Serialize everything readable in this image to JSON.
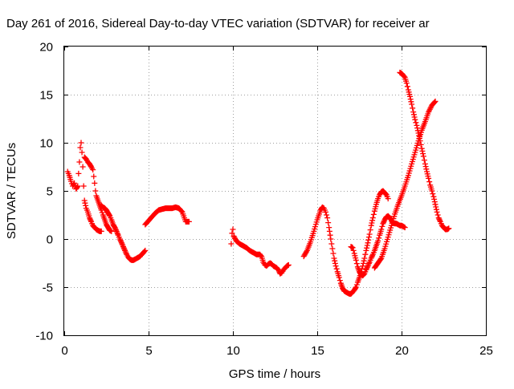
{
  "chart_data": {
    "type": "scatter",
    "title": "Day 261 of 2016, Sidereal Day-to-day VTEC variation (SDTVAR) for receiver ar",
    "xlabel": "GPS time / hours",
    "ylabel": "SDTVAR / TECUs",
    "xlim": [
      0,
      25
    ],
    "ylim": [
      -10,
      20
    ],
    "xticks": [
      0,
      5,
      10,
      15,
      20,
      25
    ],
    "yticks": [
      -10,
      -5,
      0,
      5,
      10,
      15,
      20
    ],
    "grid": true,
    "marker": "plus",
    "color": "#ff0000",
    "series": [
      {
        "values": [
          [
            0.2,
            7.0
          ],
          [
            0.3,
            6.6
          ],
          [
            0.4,
            6.0
          ],
          [
            0.5,
            5.5
          ],
          [
            0.6,
            5.8
          ],
          [
            0.7,
            5.2
          ],
          [
            0.8,
            5.5
          ],
          [
            0.85,
            6.8
          ],
          [
            0.9,
            8.0
          ],
          [
            0.95,
            9.5
          ],
          [
            1.0,
            10.0
          ],
          [
            1.05,
            9.0
          ],
          [
            1.1,
            7.5
          ],
          [
            1.15,
            5.5
          ],
          [
            1.2,
            4.0
          ],
          [
            1.3,
            3.2
          ],
          [
            1.4,
            2.8
          ],
          [
            1.5,
            2.2
          ],
          [
            1.6,
            1.8
          ],
          [
            1.7,
            1.4
          ],
          [
            1.8,
            1.2
          ],
          [
            1.9,
            1.0
          ],
          [
            2.0,
            0.9
          ],
          [
            2.1,
            0.8
          ],
          [
            2.2,
            0.8
          ]
        ]
      },
      {
        "values": [
          [
            1.2,
            8.5
          ],
          [
            1.3,
            8.3
          ],
          [
            1.4,
            8.0
          ],
          [
            1.5,
            7.8
          ],
          [
            1.6,
            7.5
          ],
          [
            1.7,
            7.2
          ],
          [
            1.75,
            6.5
          ],
          [
            1.8,
            5.8
          ],
          [
            1.85,
            5.0
          ],
          [
            1.9,
            4.5
          ],
          [
            2.0,
            4.0
          ],
          [
            2.1,
            3.5
          ],
          [
            2.2,
            3.0
          ],
          [
            2.3,
            2.5
          ],
          [
            2.4,
            2.0
          ],
          [
            2.5,
            1.5
          ],
          [
            2.6,
            1.2
          ],
          [
            2.7,
            0.9
          ],
          [
            2.8,
            0.8
          ]
        ]
      },
      {
        "values": [
          [
            2.2,
            3.5
          ],
          [
            2.3,
            3.3
          ],
          [
            2.4,
            3.2
          ],
          [
            2.5,
            3.0
          ],
          [
            2.6,
            2.7
          ],
          [
            2.7,
            2.4
          ],
          [
            2.8,
            2.0
          ],
          [
            2.9,
            1.5
          ],
          [
            3.0,
            1.2
          ],
          [
            3.1,
            0.8
          ],
          [
            3.2,
            0.4
          ],
          [
            3.3,
            0.0
          ],
          [
            3.4,
            -0.4
          ],
          [
            3.5,
            -0.8
          ],
          [
            3.6,
            -1.2
          ],
          [
            3.7,
            -1.6
          ],
          [
            3.8,
            -1.9
          ],
          [
            3.9,
            -2.1
          ],
          [
            4.0,
            -2.2
          ],
          [
            4.1,
            -2.2
          ],
          [
            4.2,
            -2.1
          ],
          [
            4.3,
            -2.0
          ],
          [
            4.4,
            -1.9
          ],
          [
            4.5,
            -1.8
          ],
          [
            4.6,
            -1.6
          ],
          [
            4.7,
            -1.4
          ],
          [
            4.8,
            -1.2
          ]
        ]
      },
      {
        "values": [
          [
            4.8,
            1.5
          ],
          [
            5.0,
            1.9
          ],
          [
            5.2,
            2.3
          ],
          [
            5.4,
            2.7
          ],
          [
            5.6,
            3.0
          ],
          [
            5.8,
            3.1
          ],
          [
            6.0,
            3.2
          ],
          [
            6.2,
            3.2
          ],
          [
            6.4,
            3.2
          ],
          [
            6.6,
            3.3
          ],
          [
            6.8,
            3.2
          ],
          [
            7.0,
            2.8
          ],
          [
            7.2,
            1.8
          ],
          [
            7.4,
            1.8
          ]
        ]
      },
      {
        "values": [
          [
            9.9,
            -0.5
          ],
          [
            9.95,
            0.6
          ],
          [
            10.0,
            1.0
          ],
          [
            10.05,
            0.3
          ],
          [
            10.2,
            -0.2
          ],
          [
            10.4,
            -0.5
          ],
          [
            10.6,
            -0.7
          ],
          [
            10.8,
            -0.9
          ],
          [
            11.0,
            -1.2
          ],
          [
            11.2,
            -1.4
          ],
          [
            11.4,
            -1.6
          ],
          [
            11.6,
            -1.6
          ],
          [
            11.7,
            -1.8
          ],
          [
            11.8,
            -2.4
          ],
          [
            11.9,
            -2.7
          ],
          [
            12.0,
            -2.8
          ],
          [
            12.1,
            -2.6
          ],
          [
            12.2,
            -2.5
          ],
          [
            12.3,
            -2.6
          ],
          [
            12.4,
            -2.8
          ],
          [
            12.5,
            -2.9
          ],
          [
            12.6,
            -3.0
          ],
          [
            12.7,
            -3.2
          ],
          [
            12.8,
            -3.6
          ],
          [
            12.9,
            -3.5
          ],
          [
            13.0,
            -3.2
          ],
          [
            13.1,
            -3.0
          ],
          [
            13.2,
            -2.8
          ],
          [
            13.3,
            -2.7
          ]
        ]
      },
      {
        "values": [
          [
            14.2,
            -1.8
          ],
          [
            14.4,
            -1.2
          ],
          [
            14.6,
            -0.3
          ],
          [
            14.8,
            0.8
          ],
          [
            15.0,
            2.0
          ],
          [
            15.2,
            3.0
          ],
          [
            15.3,
            3.3
          ],
          [
            15.4,
            3.2
          ],
          [
            15.5,
            2.8
          ],
          [
            15.6,
            2.2
          ],
          [
            15.7,
            1.2
          ],
          [
            15.8,
            0.0
          ],
          [
            15.9,
            -1.0
          ],
          [
            16.0,
            -2.0
          ],
          [
            16.1,
            -2.8
          ],
          [
            16.2,
            -3.4
          ],
          [
            16.3,
            -4.0
          ],
          [
            16.4,
            -4.6
          ],
          [
            16.5,
            -5.1
          ],
          [
            16.6,
            -5.4
          ],
          [
            16.7,
            -5.5
          ],
          [
            16.8,
            -5.6
          ],
          [
            16.9,
            -5.7
          ],
          [
            17.0,
            -5.7
          ],
          [
            17.1,
            -5.5
          ],
          [
            17.2,
            -5.3
          ],
          [
            17.3,
            -5.0
          ],
          [
            17.4,
            -4.5
          ],
          [
            17.5,
            -4.0
          ],
          [
            17.6,
            -3.4
          ],
          [
            17.7,
            -2.8
          ],
          [
            17.8,
            -2.0
          ],
          [
            17.9,
            -1.2
          ],
          [
            18.0,
            -0.4
          ],
          [
            18.1,
            0.5
          ],
          [
            18.2,
            1.4
          ],
          [
            18.3,
            2.2
          ],
          [
            18.4,
            2.9
          ],
          [
            18.5,
            3.6
          ],
          [
            18.6,
            4.2
          ],
          [
            18.7,
            4.6
          ],
          [
            18.8,
            4.9
          ],
          [
            18.9,
            5.0
          ],
          [
            19.0,
            4.8
          ],
          [
            19.1,
            4.6
          ],
          [
            19.2,
            4.2
          ]
        ]
      },
      {
        "values": [
          [
            17.0,
            -0.8
          ],
          [
            17.1,
            -0.9
          ],
          [
            17.2,
            -1.5
          ],
          [
            17.3,
            -2.2
          ],
          [
            17.4,
            -2.9
          ],
          [
            17.5,
            -3.4
          ],
          [
            17.6,
            -3.7
          ],
          [
            17.7,
            -3.8
          ],
          [
            17.8,
            -3.6
          ],
          [
            17.9,
            -3.2
          ],
          [
            18.0,
            -2.8
          ],
          [
            18.1,
            -2.4
          ],
          [
            18.2,
            -2.0
          ],
          [
            18.3,
            -1.6
          ],
          [
            18.4,
            -1.2
          ],
          [
            18.5,
            -0.7
          ],
          [
            18.6,
            -0.2
          ],
          [
            18.7,
            0.4
          ],
          [
            18.8,
            1.0
          ],
          [
            18.9,
            1.6
          ],
          [
            19.0,
            2.0
          ],
          [
            19.1,
            2.3
          ],
          [
            19.2,
            2.4
          ],
          [
            19.3,
            2.2
          ],
          [
            19.4,
            1.9
          ],
          [
            19.5,
            1.7
          ],
          [
            19.6,
            1.6
          ],
          [
            19.7,
            1.6
          ],
          [
            19.8,
            1.5
          ],
          [
            19.9,
            1.4
          ],
          [
            20.0,
            1.4
          ],
          [
            20.1,
            1.3
          ],
          [
            20.2,
            1.2
          ]
        ]
      },
      {
        "values": [
          [
            18.4,
            -3.0
          ],
          [
            18.6,
            -2.5
          ],
          [
            18.8,
            -2.0
          ],
          [
            19.0,
            -1.0
          ],
          [
            19.2,
            0.2
          ],
          [
            19.4,
            1.4
          ],
          [
            19.6,
            2.6
          ],
          [
            19.8,
            3.6
          ],
          [
            20.0,
            4.5
          ],
          [
            20.2,
            5.5
          ],
          [
            20.4,
            6.6
          ],
          [
            20.6,
            7.8
          ],
          [
            20.8,
            9.0
          ],
          [
            21.0,
            10.2
          ],
          [
            21.2,
            11.3
          ],
          [
            21.4,
            12.2
          ],
          [
            21.6,
            13.2
          ],
          [
            21.8,
            13.9
          ],
          [
            22.0,
            14.3
          ]
        ]
      },
      {
        "values": [
          [
            19.9,
            17.3
          ],
          [
            20.0,
            17.2
          ],
          [
            20.1,
            17.0
          ],
          [
            20.2,
            16.8
          ],
          [
            20.3,
            16.2
          ],
          [
            20.4,
            15.5
          ],
          [
            20.5,
            14.8
          ],
          [
            20.6,
            14.0
          ],
          [
            20.7,
            13.2
          ],
          [
            20.8,
            12.4
          ],
          [
            20.9,
            11.8
          ],
          [
            21.0,
            11.0
          ],
          [
            21.1,
            10.2
          ],
          [
            21.2,
            9.4
          ],
          [
            21.3,
            8.6
          ],
          [
            21.4,
            7.8
          ],
          [
            21.5,
            7.0
          ],
          [
            21.6,
            6.3
          ],
          [
            21.7,
            5.6
          ],
          [
            21.8,
            5.0
          ],
          [
            21.9,
            4.4
          ],
          [
            22.0,
            3.6
          ],
          [
            22.1,
            2.8
          ],
          [
            22.2,
            2.2
          ],
          [
            22.3,
            1.8
          ],
          [
            22.4,
            1.4
          ],
          [
            22.5,
            1.2
          ],
          [
            22.6,
            1.0
          ],
          [
            22.7,
            1.0
          ],
          [
            22.8,
            1.1
          ]
        ]
      }
    ]
  }
}
